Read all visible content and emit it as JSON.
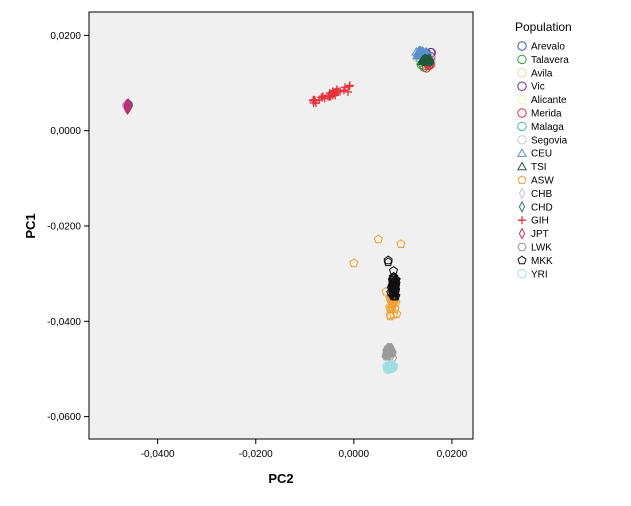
{
  "chart_data": {
    "type": "scatter",
    "xlabel": "PC2",
    "ylabel": "PC1",
    "xlim": [
      -0.054,
      0.0243
    ],
    "ylim": [
      -0.0647,
      0.0249
    ],
    "xticks": [
      -0.04,
      -0.02,
      0.0,
      0.02
    ],
    "yticks": [
      0.02,
      0.0,
      -0.02,
      -0.04,
      -0.06
    ],
    "xtick_labels": [
      "-0,0400",
      "-0,0200",
      "0,0000",
      "0,0200"
    ],
    "ytick_labels": [
      "0,0200",
      "0,0000",
      "-0,0200",
      "-0,0400",
      "-0,0600"
    ],
    "plot_background": "#f0f0f0",
    "grid": false,
    "legend_title": "Population",
    "legend_position": "right",
    "series": [
      {
        "name": "Arevalo",
        "marker": "circle",
        "color": "#3c5aa6",
        "clusters": [
          {
            "cx": 0.0143,
            "cy": 0.0155,
            "sx": 0.0013,
            "sy": 0.0009,
            "n": 14
          },
          {
            "cx": -0.0462,
            "cy": 0.0052,
            "sx": 0.0003,
            "sy": 0.0004,
            "n": 3
          }
        ]
      },
      {
        "name": "Talavera",
        "marker": "circle",
        "color": "#2e9c3c",
        "clusters": [
          {
            "cx": 0.0145,
            "cy": 0.0145,
            "sx": 0.0012,
            "sy": 0.0009,
            "n": 14
          }
        ]
      },
      {
        "name": "Avila",
        "marker": "circle",
        "color": "#e8d59e",
        "clusters": [
          {
            "cx": 0.0142,
            "cy": 0.0152,
            "sx": 0.0012,
            "sy": 0.0008,
            "n": 8
          }
        ]
      },
      {
        "name": "Vic",
        "marker": "circle",
        "color": "#6a2b8e",
        "clusters": [
          {
            "cx": 0.0148,
            "cy": 0.0158,
            "sx": 0.0012,
            "sy": 0.0008,
            "n": 8
          }
        ]
      },
      {
        "name": "Alicante",
        "marker": "circle",
        "color": "#f6f4b2",
        "clusters": [
          {
            "cx": 0.0142,
            "cy": 0.015,
            "sx": 0.0012,
            "sy": 0.0008,
            "n": 8
          }
        ]
      },
      {
        "name": "Merida",
        "marker": "circle",
        "color": "#d9363e",
        "clusters": [
          {
            "cx": 0.0148,
            "cy": 0.014,
            "sx": 0.0012,
            "sy": 0.0011,
            "n": 10
          }
        ]
      },
      {
        "name": "Malaga",
        "marker": "circle",
        "color": "#3bb4c1",
        "clusters": [
          {
            "cx": 0.014,
            "cy": 0.0156,
            "sx": 0.0011,
            "sy": 0.0008,
            "n": 10
          }
        ]
      },
      {
        "name": "Segovia",
        "marker": "circle",
        "color": "#c8c8c8",
        "clusters": [
          {
            "cx": 0.0145,
            "cy": 0.0152,
            "sx": 0.0012,
            "sy": 0.0008,
            "n": 8
          }
        ]
      },
      {
        "name": "CEU",
        "marker": "triangle",
        "color": "#5b8fd0",
        "clusters": [
          {
            "cx": 0.014,
            "cy": 0.0162,
            "sx": 0.0011,
            "sy": 0.0006,
            "n": 40
          }
        ]
      },
      {
        "name": "TSI",
        "marker": "triangle",
        "color": "#1f5a3a",
        "clusters": [
          {
            "cx": 0.0148,
            "cy": 0.0148,
            "sx": 0.0009,
            "sy": 0.0005,
            "n": 40
          }
        ]
      },
      {
        "name": "ASW",
        "marker": "pentagon",
        "color": "#f0a030",
        "clusters": [
          {
            "cx": 0.0078,
            "cy": -0.0355,
            "sx": 0.0007,
            "sy": 0.003,
            "n": 35
          }
        ],
        "points": [
          [
            0.005,
            -0.0228
          ],
          [
            0.0096,
            -0.0238
          ],
          [
            0.0,
            -0.0278
          ]
        ]
      },
      {
        "name": "CHB",
        "marker": "diamond",
        "color": "#d7b8e6",
        "clusters": [
          {
            "cx": -0.0462,
            "cy": 0.005,
            "sx": 0.0004,
            "sy": 0.0004,
            "n": 10
          }
        ]
      },
      {
        "name": "CHD",
        "marker": "diamond",
        "color": "#2b6e7c",
        "clusters": [
          {
            "cx": -0.046,
            "cy": 0.0052,
            "sx": 0.0003,
            "sy": 0.0004,
            "n": 10
          }
        ]
      },
      {
        "name": "GIH",
        "marker": "plus",
        "color": "#e8323c",
        "clusters": [
          {
            "line": [
              -0.0085,
              0.006,
              -0.0005,
              0.0094
            ],
            "jitter": 0.0003,
            "n": 40
          }
        ]
      },
      {
        "name": "JPT",
        "marker": "diamond",
        "color": "#c0306e",
        "clusters": [
          {
            "cx": -0.0461,
            "cy": 0.0051,
            "sx": 0.0003,
            "sy": 0.0004,
            "n": 40
          }
        ]
      },
      {
        "name": "LWK",
        "marker": "hexagon",
        "color": "#9a9a9a",
        "clusters": [
          {
            "cx": 0.0072,
            "cy": -0.0465,
            "sx": 0.0006,
            "sy": 0.0009,
            "n": 45
          }
        ]
      },
      {
        "name": "MKK",
        "marker": "pentagon",
        "color": "#111111",
        "clusters": [
          {
            "cx": 0.0082,
            "cy": -0.033,
            "sx": 0.0005,
            "sy": 0.0022,
            "n": 80
          }
        ],
        "points": [
          [
            0.007,
            -0.0272
          ],
          [
            0.007,
            -0.0276
          ]
        ]
      },
      {
        "name": "YRI",
        "marker": "circle",
        "color": "#a0dde3",
        "clusters": [
          {
            "cx": 0.0075,
            "cy": -0.0496,
            "sx": 0.0005,
            "sy": 0.0004,
            "n": 45
          }
        ]
      }
    ]
  }
}
